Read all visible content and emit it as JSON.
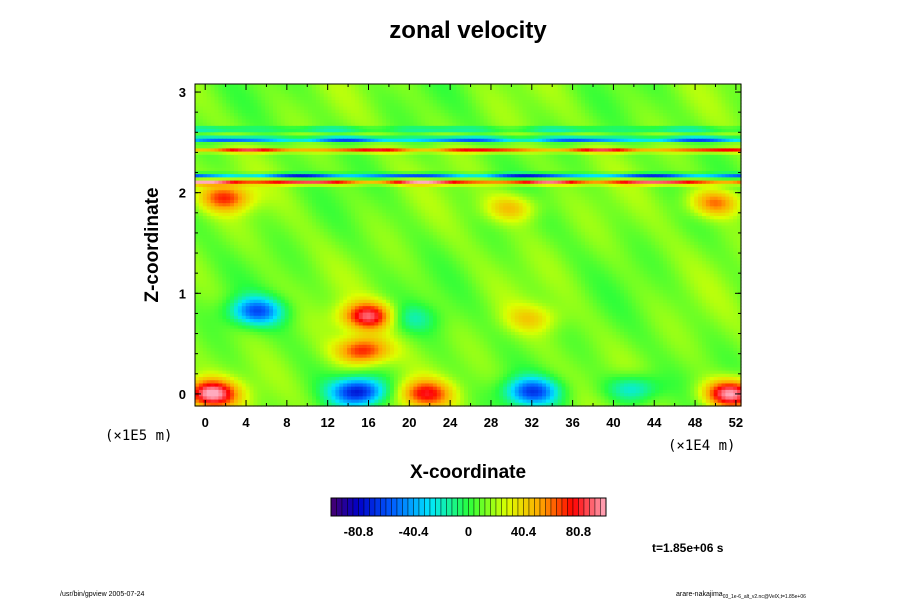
{
  "chart_data": {
    "type": "heatmap",
    "title": "zonal velocity",
    "xlabel": "X-coordinate",
    "ylabel": "Z-coordinate",
    "x_ticks": [
      "0",
      "4",
      "8",
      "12",
      "16",
      "20",
      "24",
      "28",
      "32",
      "36",
      "40",
      "44",
      "48",
      "52"
    ],
    "y_ticks": [
      "0",
      "1",
      "2",
      "3"
    ],
    "x_unit": "(×1E4 m)",
    "y_unit": "(×1E5 m)",
    "xlim": [
      -1,
      52.5
    ],
    "ylim": [
      -0.12,
      3.08
    ],
    "colorbar": {
      "range": [
        -101,
        101
      ],
      "ticks": [
        "-80.8",
        "-40.4",
        "0",
        "40.4",
        "80.8"
      ],
      "tick_values": [
        -80.8,
        -40.4,
        0,
        40.4,
        80.8
      ]
    },
    "features": [
      {
        "x": 0.5,
        "z": 0.0,
        "value": 90
      },
      {
        "x": 51.5,
        "z": 0.0,
        "value": 90
      },
      {
        "x": 15,
        "z": 0.02,
        "value": -85
      },
      {
        "x": 32,
        "z": 0.02,
        "value": -70
      },
      {
        "x": 42,
        "z": 0.05,
        "value": -40
      },
      {
        "x": 21.5,
        "z": 0.0,
        "value": 60
      },
      {
        "x": 5,
        "z": 0.82,
        "value": -65
      },
      {
        "x": 15.5,
        "z": 0.43,
        "value": 65
      },
      {
        "x": 16,
        "z": 0.77,
        "value": 75
      },
      {
        "x": 20,
        "z": 0.75,
        "value": -25
      },
      {
        "x": 32,
        "z": 0.75,
        "value": 25
      },
      {
        "x": 2,
        "z": 1.95,
        "value": 55
      },
      {
        "x": 50,
        "z": 1.9,
        "value": 50
      },
      {
        "x": 30,
        "z": 1.85,
        "value": 35
      }
    ],
    "bands": [
      {
        "z": 2.1,
        "value": 85
      },
      {
        "z": 2.17,
        "value": -80
      },
      {
        "z": 2.42,
        "value": 70
      },
      {
        "z": 2.53,
        "value": -85
      },
      {
        "z": 2.63,
        "value": -40
      }
    ]
  },
  "footer": {
    "left": "/usr/bin/gpview 2005-07-24",
    "right": "arare-nakajima",
    "right_sub": "03_1e-6_alt_v2.nc@VelX,t=1.85e+06"
  },
  "time_label": "t=1.85e+06 s"
}
